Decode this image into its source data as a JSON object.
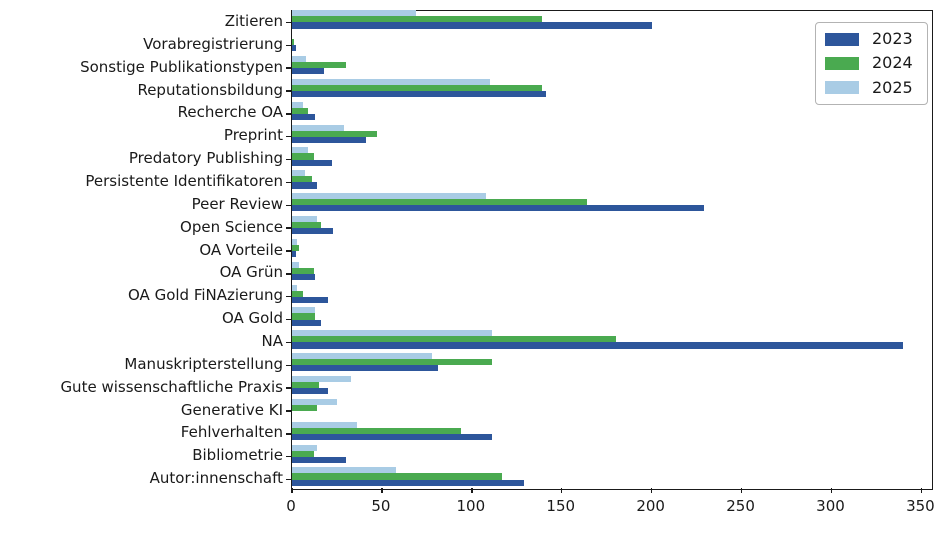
{
  "chart_data": {
    "type": "bar",
    "orientation": "horizontal",
    "title": "",
    "xlabel": "",
    "ylabel": "",
    "grid": false,
    "legend_position": "upper right",
    "xlim": [
      0,
      357
    ],
    "x_ticks": [
      0,
      50,
      100,
      150,
      200,
      250,
      300,
      350
    ],
    "categories": [
      "Zitieren",
      "Vorabregistrierung",
      "Sonstige Publikationstypen",
      "Reputationsbildung",
      "Recherche OA",
      "Preprint",
      "Predatory Publishing",
      "Persistente Identifikatoren",
      "Peer Review",
      "Open Science",
      "OA Vorteile",
      "OA Grün",
      "OA Gold FiNAzierung",
      "OA Gold",
      "NA",
      "Manuskripterstellung",
      "Gute wissenschaftliche Praxis",
      "Generative KI",
      "Fehlverhalten",
      "Bibliometrie",
      "Autor:innenschaft"
    ],
    "series": [
      {
        "name": "2023",
        "color": "#2d569b",
        "values": [
          200,
          2,
          18,
          141,
          13,
          41,
          22,
          14,
          229,
          23,
          2,
          13,
          20,
          16,
          340,
          81,
          20,
          0,
          111,
          30,
          129
        ]
      },
      {
        "name": "2024",
        "color": "#4aaa50",
        "values": [
          139,
          1,
          30,
          139,
          9,
          47,
          12,
          11,
          164,
          16,
          4,
          12,
          6,
          13,
          180,
          111,
          15,
          14,
          94,
          12,
          117
        ]
      },
      {
        "name": "2025",
        "color": "#a9cce5",
        "values": [
          69,
          0,
          8,
          110,
          6,
          29,
          9,
          7,
          108,
          14,
          3,
          4,
          3,
          13,
          111,
          78,
          33,
          25,
          36,
          14,
          58
        ]
      }
    ]
  }
}
